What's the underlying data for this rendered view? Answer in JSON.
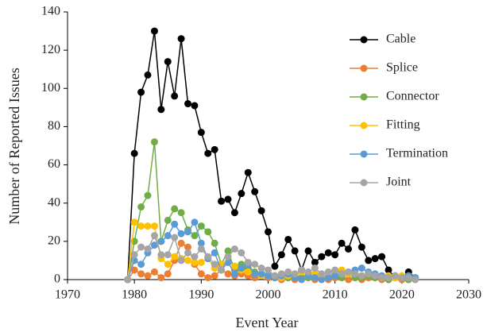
{
  "chart_data": {
    "type": "line",
    "x_label": "Event Year",
    "y_label": "Number of Reported Issues",
    "x": [
      1979,
      1980,
      1981,
      1982,
      1983,
      1984,
      1985,
      1986,
      1987,
      1988,
      1989,
      1990,
      1991,
      1992,
      1993,
      1994,
      1995,
      1996,
      1997,
      1998,
      1999,
      2000,
      2001,
      2002,
      2003,
      2004,
      2005,
      2006,
      2007,
      2008,
      2009,
      2010,
      2011,
      2012,
      2013,
      2014,
      2015,
      2016,
      2017,
      2018,
      2019,
      2020,
      2021,
      2022
    ],
    "series": [
      {
        "name": "Cable",
        "color": "#000000",
        "values": [
          0,
          66,
          98,
          107,
          130,
          89,
          114,
          96,
          126,
          92,
          91,
          77,
          66,
          68,
          41,
          42,
          35,
          45,
          56,
          46,
          36,
          25,
          7,
          13,
          21,
          15,
          5,
          15,
          9,
          12,
          14,
          13,
          19,
          16,
          26,
          17,
          10,
          11,
          12,
          5,
          1,
          1,
          4,
          1
        ]
      },
      {
        "name": "Splice",
        "color": "#ed7d31",
        "values": [
          0,
          5,
          3,
          2,
          4,
          1,
          3,
          10,
          19,
          17,
          8,
          3,
          1,
          2,
          5,
          3,
          2,
          3,
          2,
          1,
          2,
          1,
          1,
          0,
          1,
          0,
          1,
          1,
          0,
          1,
          0,
          1,
          1,
          0,
          1,
          0,
          1,
          1,
          0,
          0,
          1,
          0,
          0,
          0
        ]
      },
      {
        "name": "Connector",
        "color": "#70ad47",
        "values": [
          0,
          20,
          38,
          44,
          72,
          20,
          31,
          37,
          35,
          26,
          23,
          28,
          25,
          19,
          8,
          15,
          5,
          8,
          6,
          4,
          3,
          2,
          1,
          2,
          1,
          2,
          1,
          1,
          2,
          1,
          1,
          2,
          1,
          3,
          1,
          1,
          2,
          1,
          1,
          0,
          1,
          1,
          0,
          1
        ]
      },
      {
        "name": "Fitting",
        "color": "#ffc000",
        "values": [
          0,
          30,
          28,
          28,
          28,
          11,
          8,
          12,
          11,
          10,
          9,
          9,
          11,
          6,
          8,
          9,
          7,
          5,
          4,
          3,
          2,
          3,
          2,
          1,
          2,
          3,
          4,
          2,
          3,
          2,
          3,
          4,
          5,
          3,
          4,
          2,
          3,
          2,
          1,
          2,
          1,
          2,
          1,
          1
        ]
      },
      {
        "name": "Termination",
        "color": "#5b9bd5",
        "values": [
          0,
          10,
          8,
          14,
          18,
          20,
          23,
          29,
          24,
          25,
          30,
          19,
          11,
          14,
          5,
          9,
          3,
          6,
          8,
          3,
          3,
          2,
          1,
          2,
          3,
          1,
          0,
          2,
          1,
          0,
          1,
          2,
          3,
          4,
          5,
          6,
          4,
          3,
          2,
          1,
          2,
          1,
          2,
          1
        ]
      },
      {
        "name": "Joint",
        "color": "#a5a5a5",
        "values": [
          0,
          13,
          17,
          16,
          23,
          13,
          13,
          22,
          10,
          14,
          12,
          16,
          12,
          8,
          5,
          12,
          16,
          14,
          9,
          8,
          6,
          5,
          2,
          3,
          4,
          3,
          5,
          4,
          6,
          3,
          4,
          5,
          3,
          4,
          3,
          2,
          3,
          2,
          1,
          1,
          2,
          1,
          1,
          0
        ]
      }
    ],
    "xlim": [
      1970,
      2030
    ],
    "xticks": [
      1970,
      1980,
      1990,
      2000,
      2010,
      2020,
      2030
    ],
    "ylim": [
      0,
      140
    ],
    "yticks": [
      0,
      20,
      40,
      60,
      80,
      100,
      120,
      140
    ],
    "legend": "upper right"
  }
}
